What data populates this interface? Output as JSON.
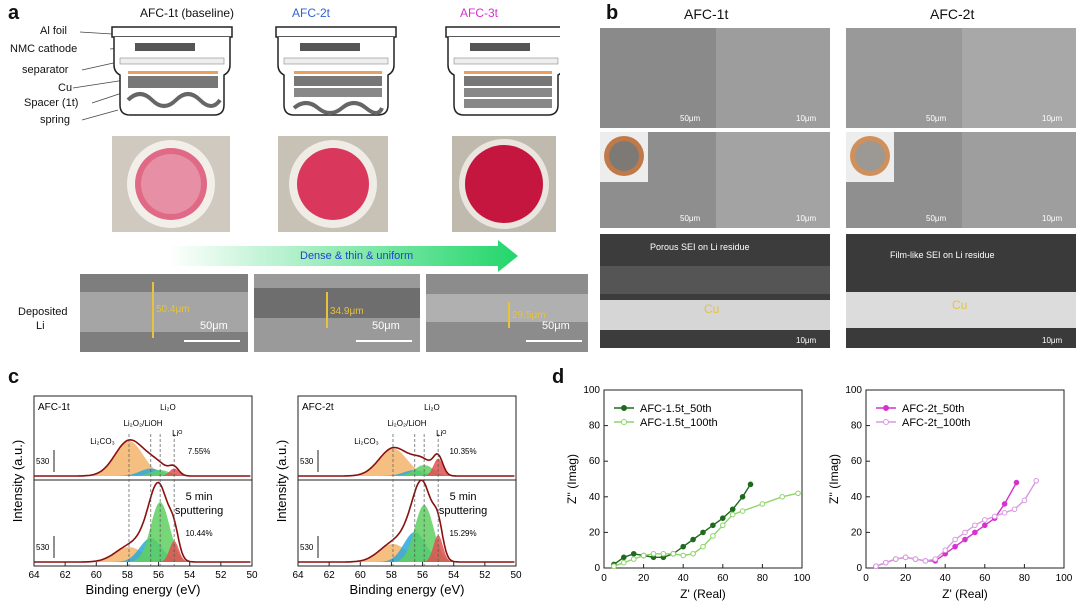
{
  "panel_a": {
    "letter": "a",
    "cells": [
      {
        "title": "AFC-1t (baseline)",
        "title_color": "#111111"
      },
      {
        "title": "AFC-2t",
        "title_color": "#2f62d6"
      },
      {
        "title": "AFC-3t",
        "title_color": "#d62fd0"
      }
    ],
    "layers": [
      "Al foil",
      "NMC cathode",
      "separator",
      "Cu",
      "Spacer (1t)",
      "spring"
    ],
    "arrow_label": "Dense & thin & uniform",
    "deposited_label_1": "Deposited",
    "deposited_label_2": "Li",
    "sem": [
      {
        "thickness": "50.4μm",
        "scale": "50μm"
      },
      {
        "thickness": "34.9μm",
        "scale": "50μm"
      },
      {
        "thickness": "29.5μm",
        "scale": "50μm"
      }
    ]
  },
  "panel_b": {
    "letter": "b",
    "col_titles": [
      "AFC-1t",
      "AFC-2t"
    ],
    "scales_top": [
      "50μm",
      "10μm"
    ],
    "cross": [
      {
        "caption": "Porous SEI on Li residue",
        "cu": "Cu",
        "scale": "10μm"
      },
      {
        "caption": "Film-like SEI on Li residue",
        "cu": "Cu",
        "scale": "10μm"
      }
    ]
  },
  "panel_c": {
    "letter": "c",
    "ylabel": "Intensity (a.u.)",
    "xlabel": "Binding energy (eV)",
    "xticks": [
      "64",
      "62",
      "60",
      "58",
      "56",
      "54",
      "52",
      "50"
    ],
    "scale_marker": "530",
    "sputter_1": "5 min",
    "sputter_2": "sputtering",
    "peaks": [
      "Li₂CO₃",
      "Li₂O₂/LiOH",
      "Li₂O",
      "Liᴼ"
    ],
    "plots": [
      {
        "name": "AFC-1t",
        "pct_top": "7.55%",
        "pct_bottom": "10.44%"
      },
      {
        "name": "AFC-2t",
        "pct_top": "10.35%",
        "pct_bottom": "15.29%"
      }
    ]
  },
  "panel_d": {
    "letter": "d",
    "ylabel": "Z'' (Imag)",
    "xlabel": "Z' (Real)",
    "xticks": [
      "0",
      "20",
      "40",
      "60",
      "80",
      "100"
    ],
    "yticks": [
      "0",
      "20",
      "40",
      "60",
      "80",
      "100"
    ]
  },
  "chart_data": [
    {
      "type": "line",
      "title": "",
      "xlabel": "Z' (Real)",
      "ylabel": "Z'' (Imag)",
      "xlim": [
        0,
        100
      ],
      "ylim": [
        0,
        100
      ],
      "legend": "top-left",
      "series": [
        {
          "name": "AFC-1.5t_50th",
          "color": "#1e6b1e",
          "x": [
            5,
            10,
            15,
            20,
            25,
            30,
            35,
            40,
            45,
            50,
            55,
            60,
            65,
            70,
            74
          ],
          "y": [
            2,
            6,
            8,
            7,
            6,
            6,
            8,
            12,
            16,
            20,
            24,
            28,
            33,
            40,
            47
          ]
        },
        {
          "name": "AFC-1.5t_100th",
          "color": "#8fd46a",
          "x": [
            5,
            10,
            15,
            20,
            25,
            30,
            35,
            40,
            45,
            50,
            55,
            60,
            65,
            70,
            80,
            90,
            98
          ],
          "y": [
            1,
            3,
            5,
            7,
            8,
            8,
            8,
            7,
            8,
            12,
            18,
            24,
            30,
            32,
            36,
            40,
            42
          ]
        }
      ]
    },
    {
      "type": "line",
      "title": "",
      "xlabel": "Z' (Real)",
      "ylabel": "Z'' (Imag)",
      "xlim": [
        0,
        100
      ],
      "ylim": [
        0,
        100
      ],
      "legend": "top-left",
      "series": [
        {
          "name": "AFC-2t_50th",
          "color": "#d633cc",
          "x": [
            5,
            10,
            15,
            20,
            25,
            30,
            35,
            40,
            45,
            50,
            55,
            60,
            65,
            70,
            76
          ],
          "y": [
            1,
            3,
            5,
            6,
            5,
            4,
            4,
            8,
            12,
            16,
            20,
            24,
            28,
            36,
            48
          ]
        },
        {
          "name": "AFC-2t_100th",
          "color": "#d89ae0",
          "x": [
            5,
            10,
            15,
            20,
            25,
            30,
            35,
            40,
            45,
            50,
            55,
            60,
            65,
            70,
            75,
            80,
            86
          ],
          "y": [
            1,
            3,
            5,
            6,
            5,
            4,
            5,
            10,
            16,
            20,
            24,
            27,
            29,
            31,
            33,
            38,
            49
          ]
        }
      ]
    }
  ]
}
